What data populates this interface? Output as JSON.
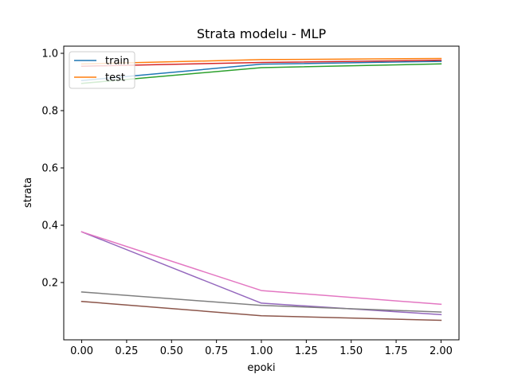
{
  "chart_data": {
    "type": "line",
    "title": "Strata modelu - MLP",
    "xlabel": "epoki",
    "ylabel": "strata",
    "xlim": [
      -0.1,
      2.1
    ],
    "ylim": [
      0.0,
      1.025
    ],
    "xticks": [
      0.0,
      0.25,
      0.5,
      0.75,
      1.0,
      1.25,
      1.5,
      1.75,
      2.0
    ],
    "xtick_labels": [
      "0.00",
      "0.25",
      "0.50",
      "0.75",
      "1.00",
      "1.25",
      "1.50",
      "1.75",
      "2.00"
    ],
    "yticks": [
      0.2,
      0.4,
      0.6,
      0.8,
      1.0
    ],
    "ytick_labels": [
      "0.2",
      "0.4",
      "0.6",
      "0.8",
      "1.0"
    ],
    "grid": false,
    "legend": {
      "placement": "top-left",
      "entries": [
        {
          "label": "train",
          "color": "#1f77b4"
        },
        {
          "label": "test",
          "color": "#ff7f0e"
        }
      ]
    },
    "series": [
      {
        "color": "#1f77b4",
        "x": [
          0,
          1,
          2
        ],
        "y": [
          0.905,
          0.962,
          0.972
        ]
      },
      {
        "color": "#ff7f0e",
        "x": [
          0,
          1,
          2
        ],
        "y": [
          0.963,
          0.978,
          0.982
        ]
      },
      {
        "color": "#2ca02c",
        "x": [
          0,
          1,
          2
        ],
        "y": [
          0.895,
          0.95,
          0.963
        ]
      },
      {
        "color": "#d62728",
        "x": [
          0,
          1,
          2
        ],
        "y": [
          0.955,
          0.968,
          0.976
        ]
      },
      {
        "color": "#9467bd",
        "x": [
          0,
          1,
          2
        ],
        "y": [
          0.377,
          0.128,
          0.088
        ]
      },
      {
        "color": "#8c564b",
        "x": [
          0,
          1,
          2
        ],
        "y": [
          0.134,
          0.084,
          0.068
        ]
      },
      {
        "color": "#e377c2",
        "x": [
          0,
          1,
          2
        ],
        "y": [
          0.377,
          0.172,
          0.124
        ]
      },
      {
        "color": "#7f7f7f",
        "x": [
          0,
          1,
          2
        ],
        "y": [
          0.167,
          0.12,
          0.097
        ]
      }
    ]
  }
}
